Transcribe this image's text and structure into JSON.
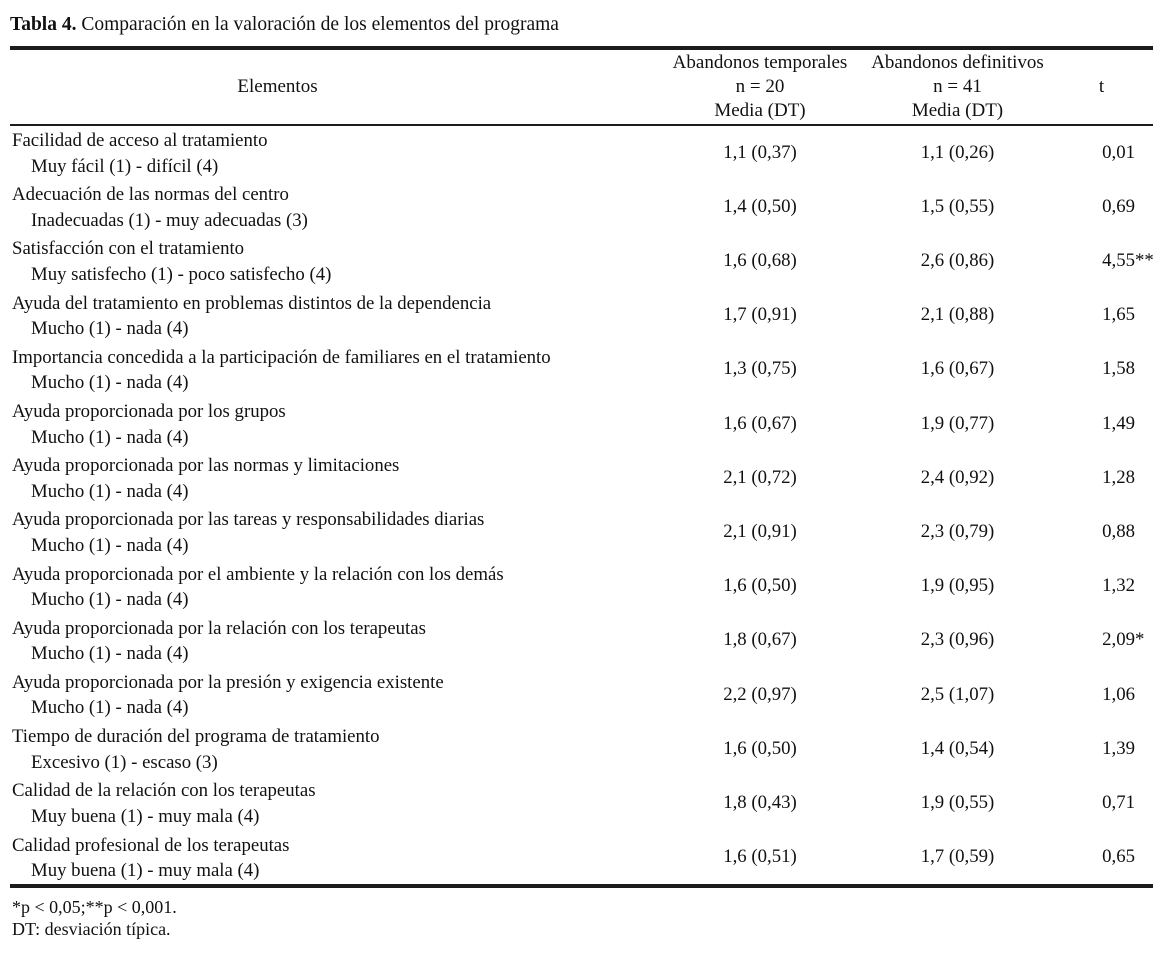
{
  "title": {
    "label": "Tabla 4.",
    "rest": "Comparación en la valoración de los elementos del programa"
  },
  "header": {
    "elements": "Elementos",
    "temporal": {
      "lines": [
        "Abandonos temporales",
        "n = 20",
        "Media (DT)"
      ]
    },
    "definitivo": {
      "lines": [
        "Abandonos definitivos",
        "n = 41",
        "Media (DT)"
      ]
    },
    "t": "t"
  },
  "rows": [
    {
      "name": "Facilidad de acceso al tratamiento",
      "scale": "Muy fácil (1) - difícil (4)",
      "temporal": "1,1 (0,37)",
      "definitivo": "1,1 (0,26)",
      "t": "0,01",
      "stars": ""
    },
    {
      "name": "Adecuación de las normas del centro",
      "scale": "Inadecuadas (1) - muy adecuadas (3)",
      "temporal": "1,4 (0,50)",
      "definitivo": "1,5 (0,55)",
      "t": "0,69",
      "stars": ""
    },
    {
      "name": "Satisfacción con el tratamiento",
      "scale": "Muy satisfecho (1) - poco satisfecho (4)",
      "temporal": "1,6 (0,68)",
      "definitivo": "2,6 (0,86)",
      "t": "4,55",
      "stars": "**"
    },
    {
      "name": "Ayuda del tratamiento en problemas distintos de la dependencia",
      "scale": "Mucho (1) - nada (4)",
      "temporal": "1,7 (0,91)",
      "definitivo": "2,1 (0,88)",
      "t": "1,65",
      "stars": ""
    },
    {
      "name": "Importancia concedida a la participación de familiares en el tratamiento",
      "scale": "Mucho (1) - nada (4)",
      "temporal": "1,3 (0,75)",
      "definitivo": "1,6 (0,67)",
      "t": "1,58",
      "stars": ""
    },
    {
      "name": "Ayuda proporcionada por los grupos",
      "scale": "Mucho (1) - nada (4)",
      "temporal": "1,6 (0,67)",
      "definitivo": "1,9 (0,77)",
      "t": "1,49",
      "stars": ""
    },
    {
      "name": "Ayuda proporcionada por las normas y limitaciones",
      "scale": "Mucho (1) - nada (4)",
      "temporal": "2,1 (0,72)",
      "definitivo": "2,4 (0,92)",
      "t": "1,28",
      "stars": ""
    },
    {
      "name": "Ayuda proporcionada por las tareas y responsabilidades diarias",
      "scale": "Mucho (1) - nada (4)",
      "temporal": "2,1 (0,91)",
      "definitivo": "2,3 (0,79)",
      "t": "0,88",
      "stars": ""
    },
    {
      "name": "Ayuda proporcionada por el ambiente y la relación con los demás",
      "scale": "Mucho (1) - nada (4)",
      "temporal": "1,6 (0,50)",
      "definitivo": "1,9 (0,95)",
      "t": "1,32",
      "stars": ""
    },
    {
      "name": "Ayuda proporcionada por la relación con los terapeutas",
      "scale": "Mucho (1) - nada (4)",
      "temporal": "1,8 (0,67)",
      "definitivo": "2,3 (0,96)",
      "t": "2,09",
      "stars": "*"
    },
    {
      "name": "Ayuda proporcionada por la presión y exigencia existente",
      "scale": "Mucho (1) - nada (4)",
      "temporal": "2,2 (0,97)",
      "definitivo": "2,5 (1,07)",
      "t": "1,06",
      "stars": ""
    },
    {
      "name": "Tiempo de duración del programa de tratamiento",
      "scale": "Excesivo (1) - escaso (3)",
      "temporal": "1,6 (0,50)",
      "definitivo": "1,4 (0,54)",
      "t": "1,39",
      "stars": ""
    },
    {
      "name": "Calidad de la relación con los terapeutas",
      "scale": "Muy buena (1) - muy mala (4)",
      "temporal": "1,8 (0,43)",
      "definitivo": "1,9 (0,55)",
      "t": "0,71",
      "stars": ""
    },
    {
      "name": "Calidad profesional de los terapeutas",
      "scale": "Muy buena (1) - muy mala (4)",
      "temporal": "1,6 (0,51)",
      "definitivo": "1,7 (0,59)",
      "t": "0,65",
      "stars": ""
    }
  ],
  "footnotes": {
    "significance": "*p < 0,05;**p < 0,001.",
    "abbreviation": "DT: desviación típica."
  },
  "colors": {
    "text": "#111111",
    "rule": "#1c1c1c",
    "background": "#ffffff"
  }
}
